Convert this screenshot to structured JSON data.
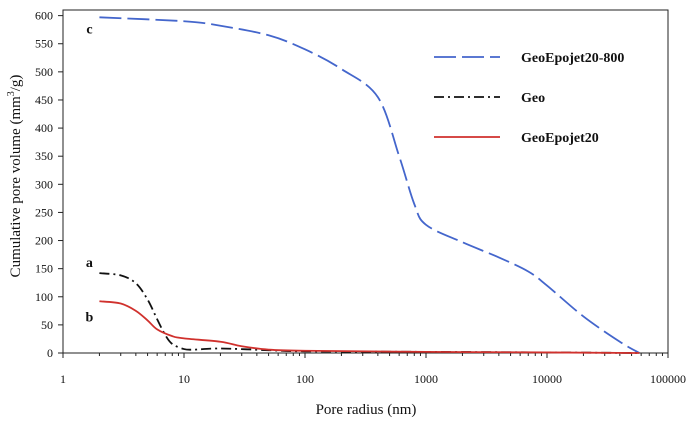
{
  "chart_data": {
    "type": "line",
    "title": "",
    "xlabel": "Pore radius (nm)",
    "ylabel_main": "Cumulative pore volume (mm",
    "ylabel_sup": "3",
    "ylabel_tail": "/g)",
    "x_scale": "log",
    "xlim": [
      1,
      100000
    ],
    "ylim": [
      0,
      610
    ],
    "x_ticks": [
      1,
      10,
      100,
      1000,
      10000,
      100000
    ],
    "x_tick_labels": [
      "1",
      "10",
      "100",
      "1000",
      "10000",
      "100000"
    ],
    "y_ticks": [
      0,
      50,
      100,
      150,
      200,
      250,
      300,
      350,
      400,
      450,
      500,
      550,
      600
    ],
    "y_tick_labels": [
      "0",
      "50",
      "100",
      "150",
      "200",
      "250",
      "300",
      "350",
      "400",
      "450",
      "500",
      "550",
      "600"
    ],
    "grid": false,
    "legend_position": "top-right",
    "series": [
      {
        "name": "GeoEpojet20-800",
        "curve_label": "c",
        "color": "#4466cc",
        "dash": "long-dash",
        "x": [
          2,
          10,
          20,
          50,
          100,
          200,
          400,
          600,
          800,
          1000,
          2000,
          4000,
          7000,
          10000,
          20000,
          40000,
          58000
        ],
        "y": [
          597,
          590,
          582,
          565,
          540,
          505,
          455,
          350,
          265,
          228,
          197,
          170,
          145,
          120,
          65,
          20,
          0
        ]
      },
      {
        "name": "Geo",
        "curve_label": "a",
        "color": "#111111",
        "dash": "dash-dot",
        "x": [
          2,
          3,
          4,
          5,
          6,
          7,
          8,
          10,
          12,
          20,
          50,
          100,
          1000,
          10000,
          58000
        ],
        "y": [
          142,
          138,
          124,
          95,
          60,
          32,
          16,
          7,
          6,
          8,
          5,
          3,
          2,
          1,
          0
        ]
      },
      {
        "name": "GeoEpojet20",
        "curve_label": "b",
        "color": "#d0312d",
        "dash": "solid",
        "x": [
          2,
          3,
          4,
          5,
          6,
          8,
          10,
          20,
          30,
          50,
          100,
          1000,
          10000,
          58000
        ],
        "y": [
          92,
          88,
          75,
          58,
          42,
          30,
          26,
          20,
          12,
          6,
          4,
          2,
          1,
          0
        ]
      }
    ]
  }
}
